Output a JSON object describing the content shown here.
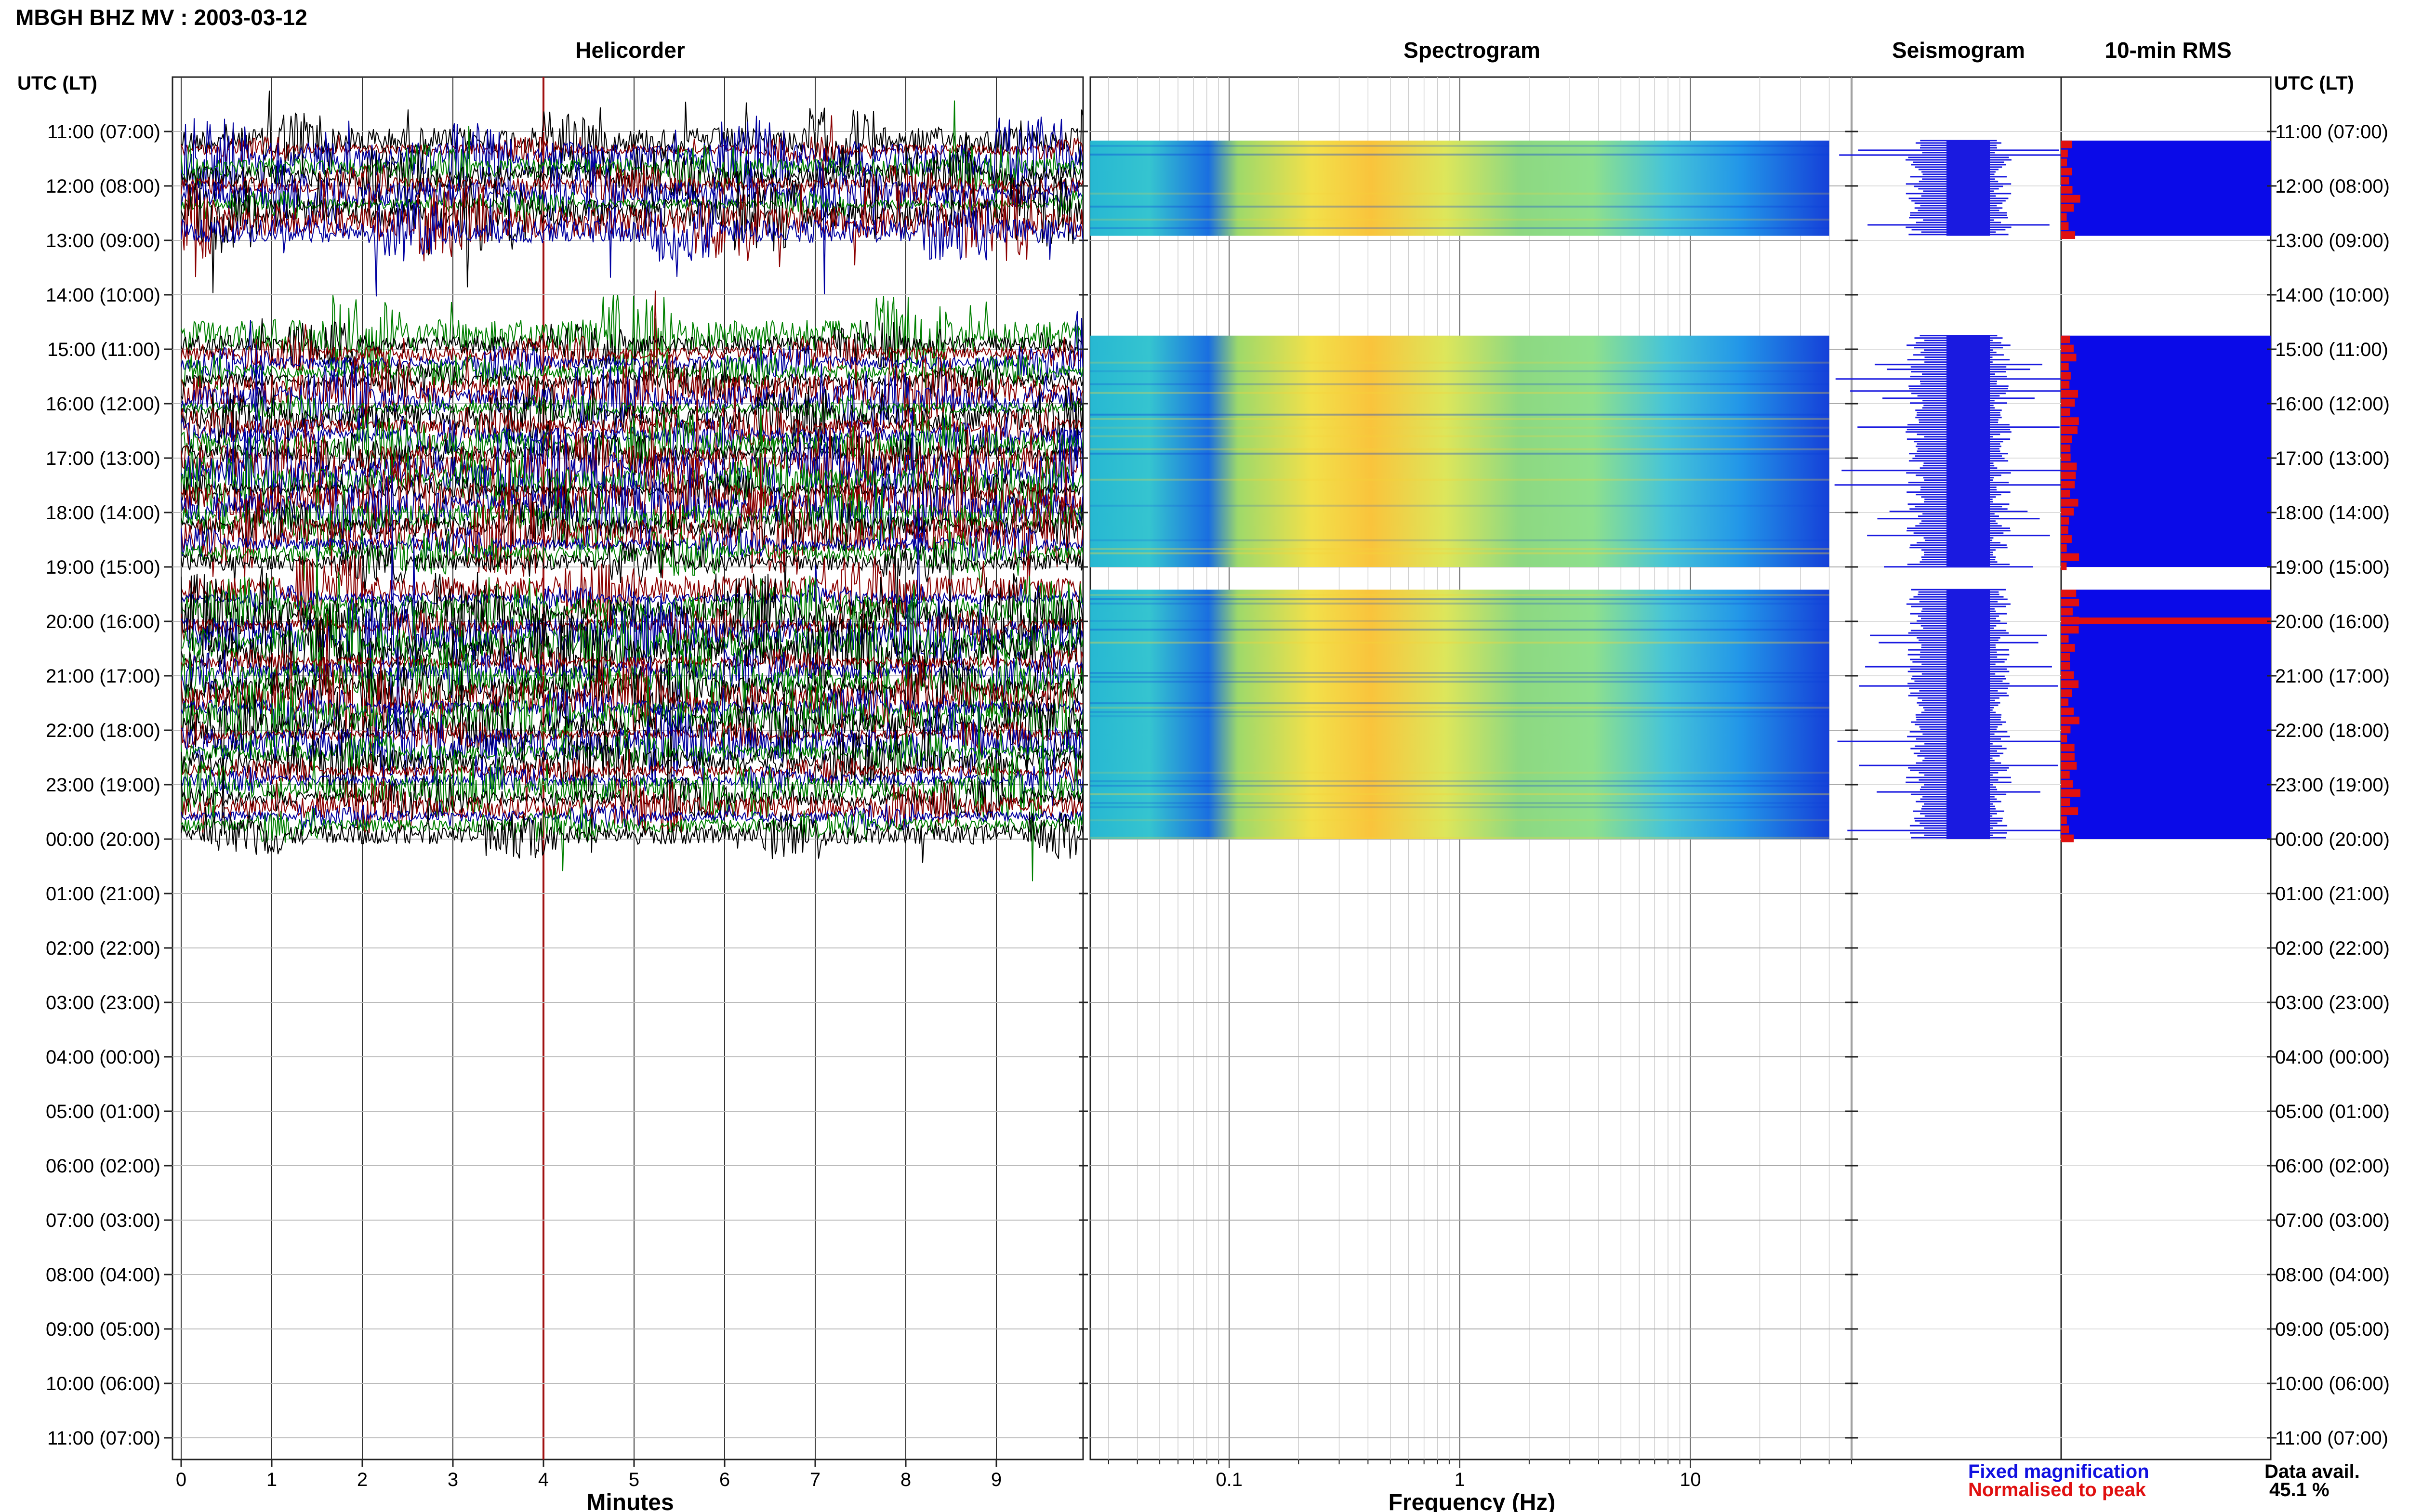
{
  "header": {
    "title": "MBGH BHZ MV : 2003-03-12"
  },
  "panels": {
    "helicorder": "Helicorder",
    "spectrogram": "Spectrogram",
    "seismogram": "Seismogram",
    "rms": "10-min RMS"
  },
  "time_axis": {
    "label": "UTC (LT)",
    "ticks": [
      "11:00 (07:00)",
      "12:00 (08:00)",
      "13:00 (09:00)",
      "14:00 (10:00)",
      "15:00 (11:00)",
      "16:00 (12:00)",
      "17:00 (13:00)",
      "18:00 (14:00)",
      "19:00 (15:00)",
      "20:00 (16:00)",
      "21:00 (17:00)",
      "22:00 (18:00)",
      "23:00 (19:00)",
      "00:00 (20:00)",
      "01:00 (21:00)",
      "02:00 (22:00)",
      "03:00 (23:00)",
      "04:00 (00:00)",
      "05:00 (01:00)",
      "06:00 (02:00)",
      "07:00 (03:00)",
      "08:00 (04:00)",
      "09:00 (05:00)",
      "10:00 (06:00)",
      "11:00 (07:00)"
    ]
  },
  "helicorder_axis": {
    "label": "Minutes",
    "ticks": [
      "0",
      "1",
      "2",
      "3",
      "4",
      "5",
      "6",
      "7",
      "8",
      "9"
    ]
  },
  "spectrogram_axis": {
    "label": "Frequency (Hz)",
    "ticks": [
      "0.1",
      "1",
      "10"
    ]
  },
  "legend": {
    "fixed": "Fixed magnification",
    "normalised": "Normalised to peak",
    "fixed_color": "#1010e0",
    "normalised_color": "#e01010"
  },
  "availability": {
    "label": "Data avail.",
    "value": "45.1 %"
  },
  "chart_data": {
    "type": "heatmap",
    "title": "MBGH BHZ MV : 2003-03-12",
    "time_range_utc": [
      "11:00",
      "11:00"
    ],
    "data_segments_utc": [
      [
        "11:10",
        "12:55"
      ],
      [
        "14:45",
        "19:00"
      ],
      [
        "19:25",
        "00:00"
      ]
    ],
    "helicorder": {
      "xlabel": "Minutes",
      "xlim": [
        0,
        10
      ],
      "trace_colors": [
        "#000000",
        "#8b0000",
        "#0000a0",
        "#008000"
      ]
    },
    "spectrogram": {
      "xlabel": "Frequency (Hz)",
      "xscale": "log",
      "xlim": [
        0.025,
        50
      ]
    },
    "rms_peak_utc": "20:00",
    "data_availability_percent": 45.1
  }
}
